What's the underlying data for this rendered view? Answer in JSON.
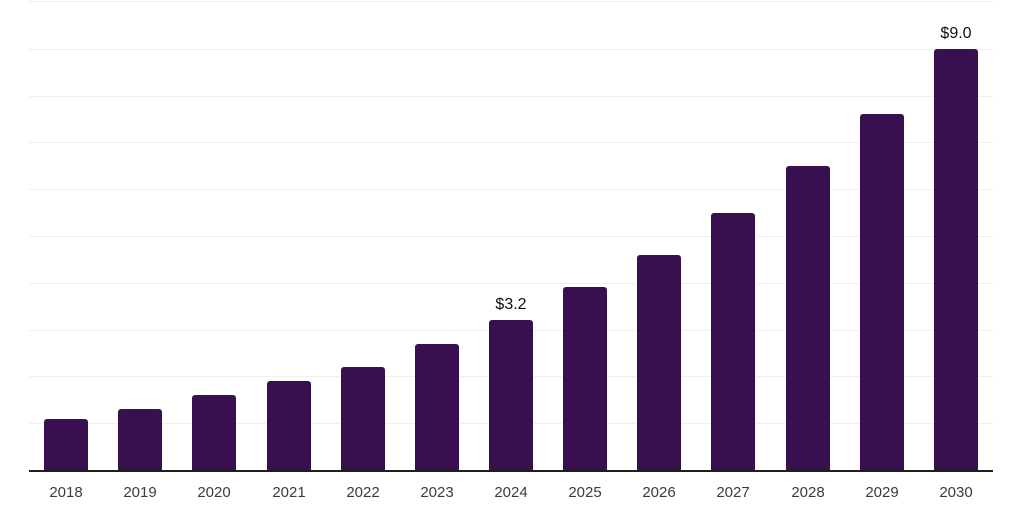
{
  "page": {
    "background_color": "#ffffff"
  },
  "chart_data": {
    "type": "bar",
    "title": "",
    "xlabel": "",
    "ylabel": "",
    "categories": [
      "2018",
      "2019",
      "2020",
      "2021",
      "2022",
      "2023",
      "2024",
      "2025",
      "2026",
      "2027",
      "2028",
      "2029",
      "2030"
    ],
    "values": [
      1.1,
      1.3,
      1.6,
      1.9,
      2.2,
      2.7,
      3.2,
      3.9,
      4.6,
      5.5,
      6.5,
      7.6,
      9.0
    ],
    "annotations": [
      {
        "category": "2024",
        "text": "$3.2"
      },
      {
        "category": "2030",
        "text": "$9.0"
      }
    ],
    "ylim": [
      0,
      10
    ],
    "y_axis_labels_visible": false,
    "gridlines": {
      "orientation": "horizontal",
      "interval": 1,
      "visible": true
    },
    "legend_position": "none",
    "colors": {
      "bar": "#38104f",
      "grid": "#efefef",
      "axis": "#1f1f1f",
      "tick_label": "#3b3b3b",
      "value_label": "#0e0e0e"
    }
  }
}
